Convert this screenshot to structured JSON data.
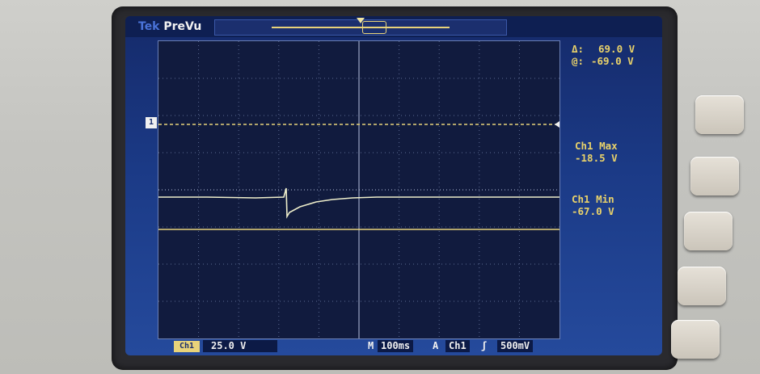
{
  "brand": {
    "prefix": "Tek",
    "mode": "PreVu"
  },
  "cursor_readouts": {
    "delta_label": "Δ:",
    "delta_value": "69.0 V",
    "at_label": "@:",
    "at_value": "-69.0 V"
  },
  "measurements": [
    {
      "label": "Ch1 Max",
      "value": "-18.5 V"
    },
    {
      "label": "Ch1 Min",
      "value": "-67.0 V"
    }
  ],
  "channel_marker": "1",
  "bottom": {
    "channel_tag": "Ch1",
    "vertical_scale": "25.0 V",
    "timebase_prefix": "M",
    "timebase": "100ms",
    "trigger_source": "Ch1",
    "trigger_level": "500mV"
  },
  "colors": {
    "trace": "#eeeecb",
    "cursor": "#e8d37a",
    "screen": "#1b3a86"
  }
}
